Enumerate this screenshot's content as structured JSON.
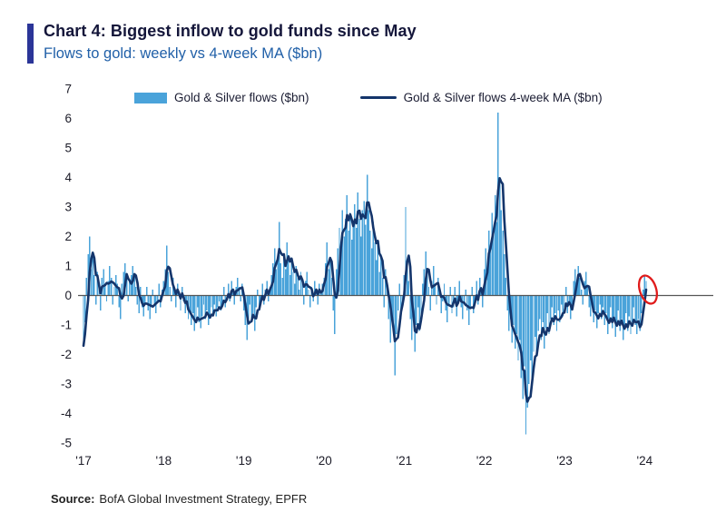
{
  "header": {
    "title": "Chart 4: Biggest inflow to gold funds since May",
    "subtitle": "Flows to gold: weekly vs 4-week MA ($bn)"
  },
  "legend": {
    "bars": "Gold & Silver flows ($bn)",
    "line": "Gold & Silver flows 4-week MA ($bn)"
  },
  "source": {
    "label": "Source:",
    "text": "BofA Global Investment Strategy, EPFR"
  },
  "colors": {
    "accent": "#2b3598",
    "subtitle": "#2160a8",
    "bar": "#4aa3da",
    "line": "#14356b",
    "zero_line": "#555555",
    "annotation": "#e01b1b"
  },
  "chart_data": {
    "type": "bar",
    "combo": "weekly bars with 4-week moving-average line overlay",
    "title": "Flows to gold: weekly vs 4-week MA ($bn)",
    "xticks": [
      "'17",
      "'18",
      "'19",
      "'20",
      "'21",
      "'22",
      "'23",
      "'24"
    ],
    "xtick_week_index": [
      0,
      52,
      104,
      156,
      208,
      260,
      312,
      364
    ],
    "yticks": [
      7,
      6,
      5,
      4,
      3,
      2,
      1,
      0,
      -1,
      -2,
      -3,
      -4,
      -5
    ],
    "ylim": [
      -5,
      7
    ],
    "legend_position": "top",
    "grid": false,
    "annotation": {
      "shape": "red-ellipse",
      "target": "latest-data-point"
    },
    "series": [
      {
        "name": "Gold & Silver flows ($bn)",
        "type": "bar",
        "values": [
          -1.7,
          -0.9,
          0.6,
          1.4,
          2.0,
          0.9,
          1.5,
          0.7,
          -0.3,
          0.8,
          0.3,
          -0.5,
          0.6,
          0.9,
          0.4,
          -0.2,
          0.5,
          1.0,
          0.6,
          -0.3,
          0.3,
          0.7,
          0.4,
          -0.4,
          -0.8,
          0.4,
          0.8,
          1.1,
          0.6,
          -0.2,
          0.5,
          0.7,
          1.0,
          0.7,
          0.3,
          -0.3,
          -0.6,
          0.3,
          -0.4,
          -0.7,
          -0.3,
          0.3,
          -0.5,
          -0.8,
          -0.4,
          0.2,
          -0.3,
          -0.6,
          -0.2,
          0.4,
          -0.4,
          0.2,
          0.5,
          0.9,
          1.7,
          0.8,
          0.3,
          -0.2,
          0.6,
          0.2,
          -0.4,
          0.4,
          0.1,
          -0.5,
          0.3,
          -0.2,
          -0.6,
          -0.3,
          -0.8,
          -0.5,
          -1.0,
          -0.6,
          -1.2,
          -0.8,
          -0.4,
          -0.9,
          -1.1,
          -0.7,
          -0.3,
          -0.8,
          -0.5,
          -1.0,
          -0.7,
          -0.4,
          -0.6,
          -0.3,
          -0.7,
          -0.4,
          -0.2,
          -0.5,
          -0.3,
          0.3,
          -0.4,
          -0.1,
          0.4,
          -0.2,
          0.5,
          0.1,
          -0.3,
          0.3,
          0.6,
          0.3,
          -0.2,
          0.4,
          -0.5,
          -1.0,
          -1.5,
          -0.8,
          -0.3,
          -0.9,
          -0.6,
          -1.2,
          -0.4,
          0.2,
          -0.5,
          -0.2,
          0.4,
          -0.3,
          0.2,
          0.5,
          -0.2,
          0.3,
          0.7,
          1.1,
          1.6,
          0.9,
          1.3,
          2.5,
          1.1,
          0.6,
          1.4,
          0.9,
          1.8,
          1.2,
          0.7,
          1.3,
          0.8,
          0.4,
          1.0,
          0.6,
          0.2,
          0.8,
          0.5,
          -0.3,
          0.5,
          0.8,
          0.2,
          -0.4,
          0.3,
          -0.2,
          0.5,
          0.2,
          -0.3,
          0.4,
          0.1,
          0.4,
          0.6,
          1.1,
          1.8,
          0.9,
          1.3,
          0.6,
          -0.5,
          -1.3,
          0.9,
          1.6,
          2.3,
          1.7,
          2.9,
          2.0,
          2.6,
          3.4,
          2.2,
          2.8,
          1.9,
          2.5,
          3.1,
          2.3,
          3.5,
          2.6,
          2.0,
          2.9,
          3.2,
          2.4,
          4.1,
          2.9,
          2.2,
          1.6,
          2.5,
          1.8,
          1.2,
          1.9,
          0.8,
          1.4,
          0.6,
          -0.4,
          0.9,
          0.3,
          -0.8,
          -1.6,
          -0.7,
          -1.2,
          -2.7,
          -1.3,
          -0.5,
          0.4,
          -0.8,
          -0.3,
          0.7,
          3.0,
          1.2,
          0.5,
          -0.8,
          -1.5,
          -0.6,
          -1.9,
          -1.0,
          -0.4,
          -1.2,
          -0.7,
          0.4,
          0.9,
          1.5,
          0.8,
          0.3,
          -0.5,
          0.5,
          1.0,
          0.4,
          -0.3,
          0.6,
          0.1,
          -0.6,
          -0.2,
          0.4,
          -0.5,
          -0.9,
          -0.3,
          0.3,
          -0.6,
          -0.4,
          0.3,
          -0.7,
          -0.2,
          0.5,
          -0.4,
          -0.8,
          -0.3,
          0.2,
          -0.5,
          -1.0,
          -0.4,
          0.3,
          -0.6,
          -0.2,
          0.5,
          -0.3,
          0.6,
          0.2,
          -0.4,
          0.9,
          1.6,
          1.0,
          2.2,
          1.6,
          2.8,
          2.1,
          3.4,
          2.5,
          6.2,
          3.8,
          2.9,
          2.2,
          1.4,
          0.6,
          -0.5,
          -1.2,
          -0.8,
          -1.6,
          -1.0,
          -1.8,
          -1.3,
          -2.2,
          -1.5,
          -2.8,
          -3.5,
          -2.4,
          -4.7,
          -3.8,
          -3.0,
          -2.2,
          -2.8,
          -1.9,
          -1.4,
          -2.0,
          -1.2,
          -0.8,
          -1.5,
          -0.9,
          -1.8,
          -1.1,
          -0.6,
          -1.3,
          -0.8,
          -0.4,
          -1.0,
          -0.6,
          -1.2,
          -0.5,
          -0.9,
          -0.3,
          -0.7,
          -0.4,
          0.3,
          -0.6,
          -0.2,
          -0.8,
          -0.3,
          0.5,
          0.9,
          0.4,
          1.0,
          0.6,
          0.2,
          -0.3,
          0.5,
          0.8,
          0.3,
          -0.4,
          -0.7,
          -0.2,
          -0.9,
          -0.5,
          -1.1,
          -0.6,
          -0.3,
          -0.8,
          -0.4,
          -1.0,
          -0.6,
          -1.3,
          -0.8,
          -0.4,
          -1.1,
          -0.7,
          -1.4,
          -0.9,
          -0.5,
          -1.2,
          -0.8,
          -1.5,
          -1.0,
          -0.6,
          -1.2,
          -0.7,
          -1.3,
          -0.9,
          -0.4,
          -1.0,
          -1.3,
          -0.8,
          -1.2,
          -0.6,
          0.2,
          0.7,
          0.5
        ]
      },
      {
        "name": "Gold & Silver flows 4-week MA ($bn)",
        "type": "line",
        "derivation": "4-week trailing moving average of the weekly bar series"
      }
    ]
  }
}
